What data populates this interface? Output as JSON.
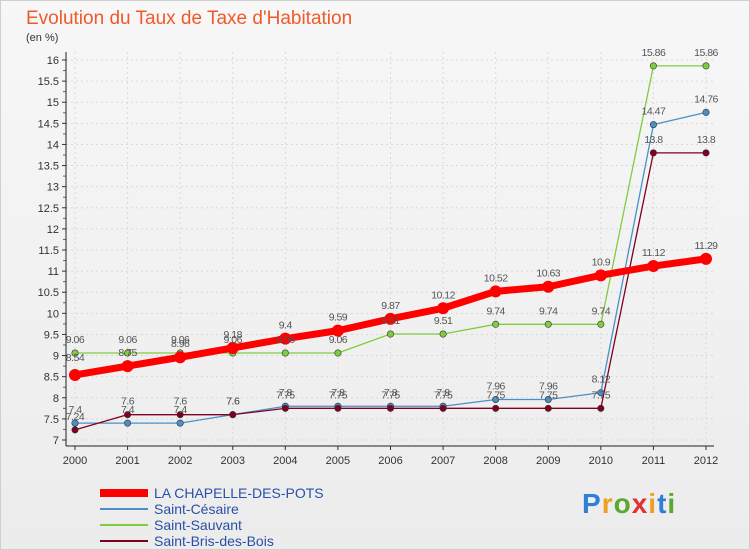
{
  "chart_data": {
    "type": "line",
    "title": "Evolution du Taux de Taxe d'Habitation",
    "ylabel": "(en %)",
    "xlabel": "",
    "categories": [
      "2000",
      "2001",
      "2002",
      "2003",
      "2004",
      "2005",
      "2006",
      "2007",
      "2008",
      "2009",
      "2010",
      "2011",
      "2012"
    ],
    "ylim": [
      7,
      16
    ],
    "yticks": [
      "7",
      "7.5",
      "8",
      "8.5",
      "9",
      "9.5",
      "10",
      "10.5",
      "11",
      "11.5",
      "12",
      "12.5",
      "13",
      "13.5",
      "14",
      "14.5",
      "15",
      "15.5",
      "16"
    ],
    "grid": true,
    "series": [
      {
        "name": "LA CHAPELLE-DES-POTS",
        "color": "#ff0000",
        "values": [
          8.54,
          8.75,
          8.96,
          9.18,
          9.4,
          9.59,
          9.87,
          10.12,
          10.52,
          10.63,
          10.9,
          11.12,
          11.29
        ],
        "labels": [
          "8.54",
          "8.75",
          "8.96",
          "9.18",
          "9.4",
          "9.59",
          "9.87",
          "10.12",
          "10.52",
          "10.63",
          "10.9",
          "11.12",
          "11.29"
        ]
      },
      {
        "name": "Saint-Césaire",
        "color": "#4a90c8",
        "values": [
          7.4,
          7.4,
          7.4,
          7.6,
          7.8,
          7.8,
          7.8,
          7.8,
          7.96,
          7.96,
          8.12,
          14.47,
          14.76
        ],
        "labels": [
          "7.4",
          "7.4",
          "7.4",
          "7.6",
          "7.8",
          "7.8",
          "7.8",
          "7.8",
          "7.96",
          "7.96",
          "8.12",
          "14.47",
          "14.76"
        ]
      },
      {
        "name": "Saint-Sauvant",
        "color": "#80cc40",
        "values": [
          9.06,
          9.06,
          9.06,
          9.06,
          9.06,
          9.06,
          9.51,
          9.51,
          9.74,
          9.74,
          9.74,
          15.86,
          15.86
        ],
        "labels": [
          "9.06",
          "9.06",
          "9.06",
          "9.06",
          "9.06",
          "9.06",
          "9.51",
          "9.51",
          "9.74",
          "9.74",
          "9.74",
          "15.86",
          "15.86"
        ]
      },
      {
        "name": "Saint-Bris-des-Bois",
        "color": "#800020",
        "values": [
          7.24,
          7.6,
          7.6,
          7.6,
          7.75,
          7.75,
          7.75,
          7.75,
          7.75,
          7.75,
          7.75,
          13.8,
          13.8
        ],
        "labels": [
          "7.24",
          "7.6",
          "7.6",
          "7.6",
          "7.75",
          "7.75",
          "7.75",
          "7.75",
          "7.75",
          "7.75",
          "7.75",
          "13.8",
          "13.8"
        ]
      }
    ]
  },
  "brand": {
    "letters": [
      "P",
      "r",
      "o",
      "x",
      "i",
      "t",
      "i"
    ],
    "colors": [
      "#2f7fd6",
      "#f0a020",
      "#5aa832",
      "#e03030",
      "#f0a020",
      "#2f7fd6",
      "#5aa832"
    ]
  }
}
